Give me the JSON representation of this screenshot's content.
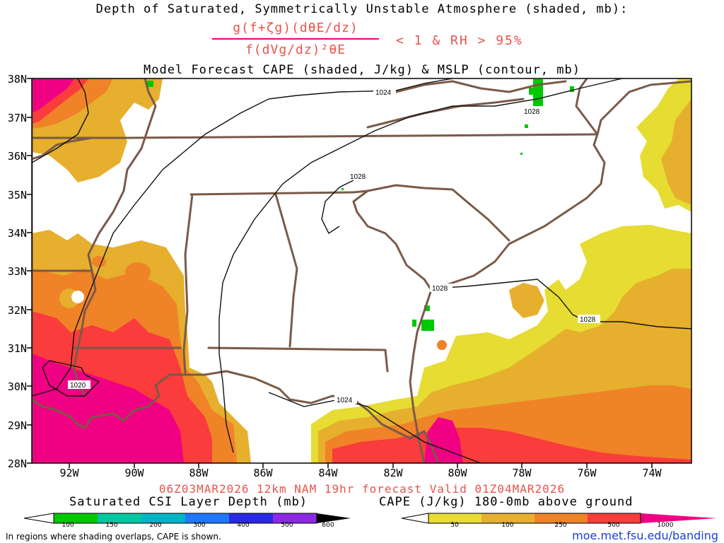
{
  "titles": {
    "line1": "Depth of Saturated, Symmetrically Unstable Atmosphere (shaded, mb):",
    "numerator": "g(f+ζg)(dθE/dz)",
    "denominator": "f(dVg/dz)²θE",
    "condition": "< 1 & RH > 95%",
    "line3": "Model Forecast CAPE (shaded, J/kg) & MSLP (contour, mb)"
  },
  "valid_line": "06Z03MAR2026 12km NAM 19hr forecast Valid 01Z04MAR2026",
  "latitude_labels": [
    "38N",
    "37N",
    "36N",
    "35N",
    "34N",
    "33N",
    "32N",
    "31N",
    "30N",
    "29N",
    "28N"
  ],
  "longitude_labels": [
    "92W",
    "90W",
    "88W",
    "86W",
    "84W",
    "82W",
    "80W",
    "78W",
    "76W",
    "74W"
  ],
  "isobar_labels": [
    "1024",
    "1028",
    "1028",
    "1028",
    "1028",
    "1020",
    "1024"
  ],
  "csi_legend": {
    "title": "Saturated CSI Layer Depth (mb)",
    "ticks": [
      "100",
      "150",
      "200",
      "300",
      "400",
      "500",
      "600"
    ],
    "colors": [
      "#ffffff",
      "#00c800",
      "#00c8a0",
      "#00b4c8",
      "#1e78ff",
      "#2828e6",
      "#8c28e6",
      "#000000"
    ]
  },
  "cape_legend": {
    "title": "CAPE (J/kg) 180-0mb above ground",
    "ticks": [
      "50",
      "100",
      "250",
      "500",
      "1000"
    ],
    "colors": [
      "#ffffff",
      "#e6dc32",
      "#e6af2d",
      "#f08228",
      "#fa3c3c",
      "#f00082"
    ]
  },
  "footnote": "In regions where shading overlaps, CAPE is shown.",
  "credit": "moe.met.fsu.edu/banding"
}
